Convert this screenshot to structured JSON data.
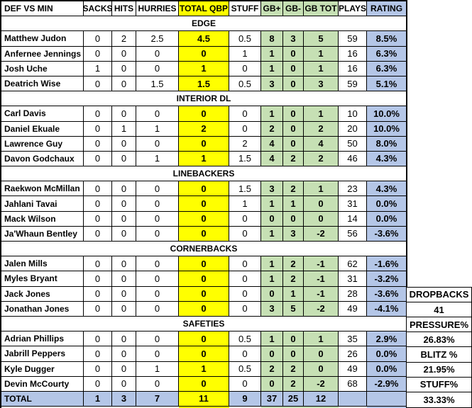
{
  "colors": {
    "highlight_yellow": "#FFFF00",
    "highlight_green": "#C6E0B4",
    "highlight_blue": "#B4C6E7"
  },
  "chart_data": {
    "type": "table",
    "title": "DEF VS MIN",
    "columns": [
      "DEF VS MIN",
      "SACKS",
      "HITS",
      "HURRIES",
      "TOTAL QBP",
      "STUFF",
      "GB+",
      "GB-",
      "GB TOT",
      "PLAYS",
      "RATING"
    ],
    "sections": [
      {
        "label": "EDGE",
        "rows": [
          [
            "Matthew Judon",
            "0",
            "2",
            "2.5",
            "4.5",
            "0.5",
            "8",
            "3",
            "5",
            "59",
            "8.5%"
          ],
          [
            "Anfernee Jennings",
            "0",
            "0",
            "0",
            "0",
            "1",
            "1",
            "0",
            "1",
            "16",
            "6.3%"
          ],
          [
            "Josh Uche",
            "1",
            "0",
            "0",
            "1",
            "0",
            "1",
            "0",
            "1",
            "16",
            "6.3%"
          ],
          [
            "Deatrich Wise",
            "0",
            "0",
            "1.5",
            "1.5",
            "0.5",
            "3",
            "0",
            "3",
            "59",
            "5.1%"
          ]
        ]
      },
      {
        "label": "INTERIOR DL",
        "rows": [
          [
            "Carl Davis",
            "0",
            "0",
            "0",
            "0",
            "0",
            "1",
            "0",
            "1",
            "10",
            "10.0%"
          ],
          [
            "Daniel Ekuale",
            "0",
            "1",
            "1",
            "2",
            "0",
            "2",
            "0",
            "2",
            "20",
            "10.0%"
          ],
          [
            "Lawrence Guy",
            "0",
            "0",
            "0",
            "0",
            "2",
            "4",
            "0",
            "4",
            "50",
            "8.0%"
          ],
          [
            "Davon Godchaux",
            "0",
            "0",
            "1",
            "1",
            "1.5",
            "4",
            "2",
            "2",
            "46",
            "4.3%"
          ]
        ]
      },
      {
        "label": "LINEBACKERS",
        "rows": [
          [
            "Raekwon McMillan",
            "0",
            "0",
            "0",
            "0",
            "1.5",
            "3",
            "2",
            "1",
            "23",
            "4.3%"
          ],
          [
            "Jahlani Tavai",
            "0",
            "0",
            "0",
            "0",
            "1",
            "1",
            "1",
            "0",
            "31",
            "0.0%"
          ],
          [
            "Mack Wilson",
            "0",
            "0",
            "0",
            "0",
            "0",
            "0",
            "0",
            "0",
            "14",
            "0.0%"
          ],
          [
            "Ja'Whaun Bentley",
            "0",
            "0",
            "0",
            "0",
            "0",
            "1",
            "3",
            "-2",
            "56",
            "-3.6%"
          ]
        ]
      },
      {
        "label": "CORNERBACKS",
        "rows": [
          [
            "Jalen Mills",
            "0",
            "0",
            "0",
            "0",
            "0",
            "1",
            "2",
            "-1",
            "62",
            "-1.6%"
          ],
          [
            "Myles Bryant",
            "0",
            "0",
            "0",
            "0",
            "0",
            "1",
            "2",
            "-1",
            "31",
            "-3.2%"
          ],
          [
            "Jack Jones",
            "0",
            "0",
            "0",
            "0",
            "0",
            "0",
            "1",
            "-1",
            "28",
            "-3.6%"
          ],
          [
            "Jonathan Jones",
            "0",
            "0",
            "0",
            "0",
            "0",
            "3",
            "5",
            "-2",
            "49",
            "-4.1%"
          ]
        ]
      },
      {
        "label": "SAFETIES",
        "rows": [
          [
            "Adrian Phillips",
            "0",
            "0",
            "0",
            "0",
            "0.5",
            "1",
            "0",
            "1",
            "35",
            "2.9%"
          ],
          [
            "Jabrill Peppers",
            "0",
            "0",
            "0",
            "0",
            "0",
            "0",
            "0",
            "0",
            "26",
            "0.0%"
          ],
          [
            "Kyle Dugger",
            "0",
            "0",
            "1",
            "1",
            "0.5",
            "2",
            "2",
            "0",
            "49",
            "0.0%"
          ],
          [
            "Devin McCourty",
            "0",
            "0",
            "0",
            "0",
            "0",
            "0",
            "2",
            "-2",
            "68",
            "-2.9%"
          ]
        ]
      }
    ],
    "total_row": [
      "TOTAL",
      "1",
      "3",
      "7",
      "11",
      "9",
      "37",
      "25",
      "12",
      "",
      ""
    ],
    "side_cells": [
      "DROPBACKS",
      "41",
      "PRESSURE%",
      "26.83%",
      "BLITZ %",
      "21.95%",
      "STUFF%",
      "33.33%"
    ]
  }
}
